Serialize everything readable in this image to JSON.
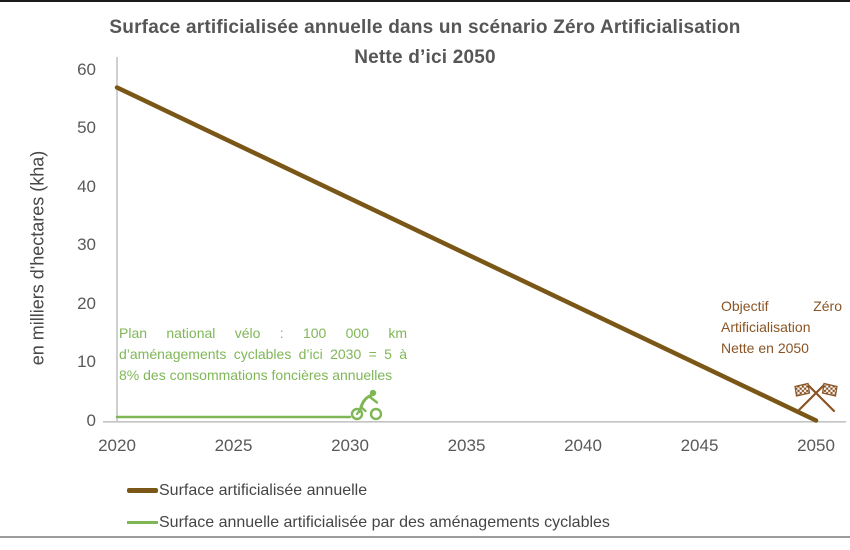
{
  "frame": {
    "top_border_color": "#1b1b1b",
    "bottom_border_color": "#9c9c9c"
  },
  "chart_data": {
    "type": "line",
    "title": "Surface artificialisée annuelle dans un scénario Zéro Artificialisation Nette d’ici 2050",
    "xlabel": "",
    "ylabel": "en milliers d'hectares (kha)",
    "xlim": [
      2020,
      2050
    ],
    "ylim": [
      0,
      60
    ],
    "x_ticks": [
      2020,
      2025,
      2030,
      2035,
      2040,
      2045,
      2050
    ],
    "y_ticks": [
      0,
      10,
      20,
      30,
      40,
      50,
      60
    ],
    "grid": false,
    "legend_position": "bottom-left",
    "axis_color": "#c4c4c4",
    "tick_label_color": "#595959",
    "title_color": "#565656",
    "series": [
      {
        "name": "Surface artificialisée annuelle",
        "color": "#7a5716",
        "stroke_width": 4.5,
        "x": [
          2020,
          2050
        ],
        "y": [
          57,
          0
        ]
      },
      {
        "name": "Surface annuelle artificialisée par des aménagements cyclables",
        "color": "#7fb757",
        "stroke_width": 2.5,
        "x": [
          2020,
          2030
        ],
        "y": [
          0.6,
          0.6
        ]
      }
    ],
    "annotations": [
      {
        "text": "Plan national vélo : 100 000 km d’aménagements cyclables d’ici 2030 = 5 à 8% des consommations foncières annuelles",
        "color": "#7fb757",
        "icon": "cyclist-icon"
      },
      {
        "text": "Objectif Zéro Artificialisation Nette en 2050",
        "color": "#8a5424",
        "icon": "checkered-flags-icon"
      }
    ]
  }
}
